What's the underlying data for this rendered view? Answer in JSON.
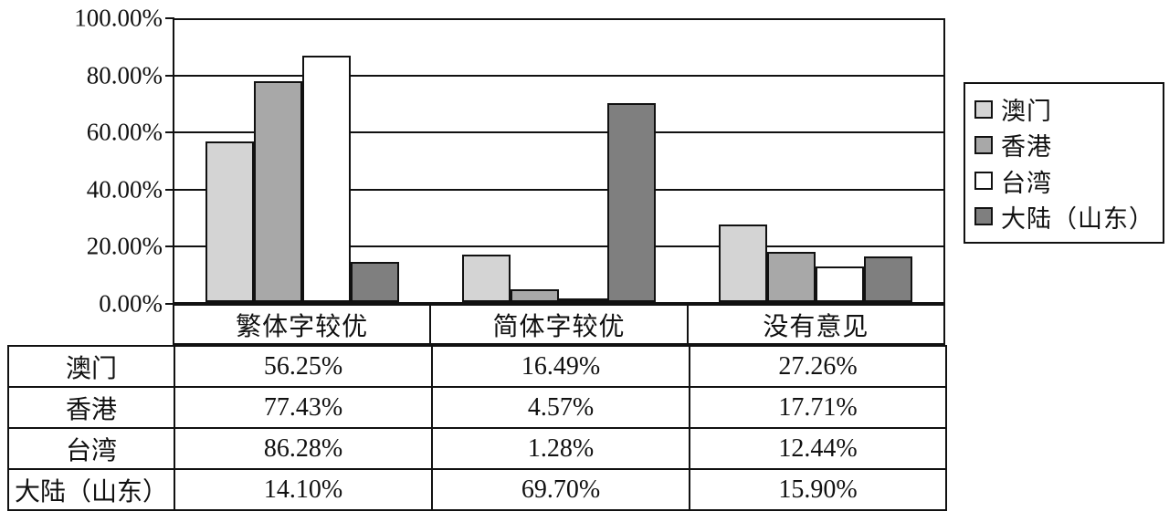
{
  "figure": {
    "background": "#ffffff",
    "line_color": "#111111"
  },
  "chart_data": {
    "type": "bar",
    "title": "",
    "xlabel": "",
    "ylabel": "",
    "ylim": [
      0,
      100
    ],
    "y_tick_step": 20,
    "y_tick_labels_top_to_bottom": [
      "100.00%",
      "80.00%",
      "60.00%",
      "40.00%",
      "20.00%",
      "0.00%"
    ],
    "grid": true,
    "legend_position": "right",
    "categories": [
      "繁体字较优",
      "简体字较优",
      "没有意见"
    ],
    "series": [
      {
        "name": "澳门",
        "color": "#d4d4d4",
        "values": [
          56.25,
          16.49,
          27.26
        ]
      },
      {
        "name": "香港",
        "color": "#a8a8a8",
        "values": [
          77.43,
          4.57,
          17.71
        ]
      },
      {
        "name": "台湾",
        "color": "#ffffff",
        "values": [
          86.28,
          1.28,
          12.44
        ]
      },
      {
        "name": "大陆（山东）",
        "color": "#7f7f7f",
        "values": [
          14.1,
          69.7,
          15.9
        ]
      }
    ]
  },
  "legend": {
    "items": [
      {
        "label": "澳门",
        "color": "#d4d4d4"
      },
      {
        "label": "香港",
        "color": "#a8a8a8"
      },
      {
        "label": "台湾",
        "color": "#ffffff"
      },
      {
        "label": "大陆（山东）",
        "color": "#7f7f7f"
      }
    ]
  },
  "table": {
    "column_headers": [
      "繁体字较优",
      "简体字较优",
      "没有意见"
    ],
    "rows": [
      {
        "label": "澳门",
        "values": [
          "56.25%",
          "16.49%",
          "27.26%"
        ]
      },
      {
        "label": "香港",
        "values": [
          "77.43%",
          "4.57%",
          "17.71%"
        ]
      },
      {
        "label": "台湾",
        "values": [
          "86.28%",
          "1.28%",
          "12.44%"
        ]
      },
      {
        "label": "大陆（山东）",
        "values": [
          "14.10%",
          "69.70%",
          "15.90%"
        ]
      }
    ]
  }
}
